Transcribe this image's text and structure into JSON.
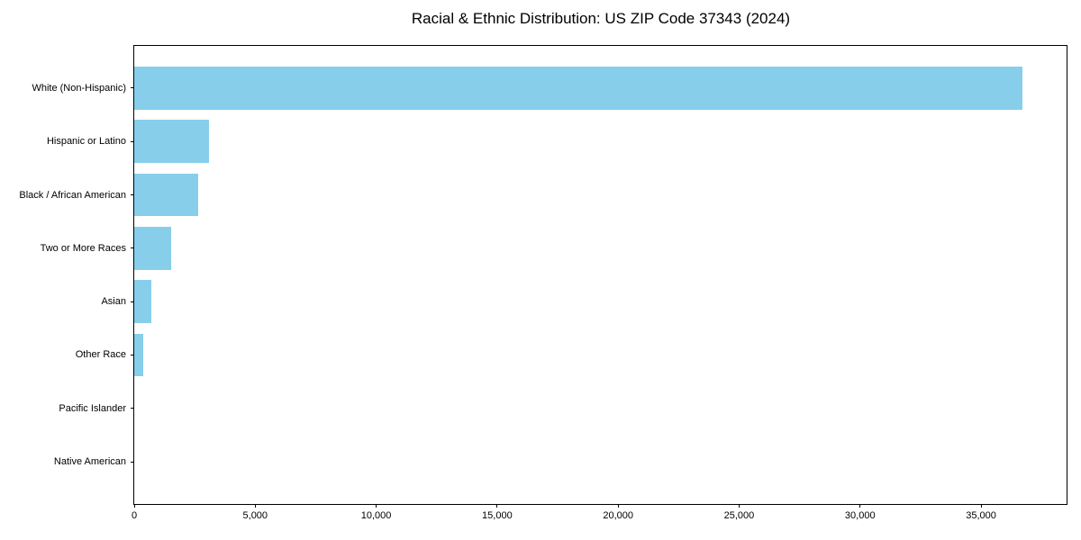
{
  "title": "Racial & Ethnic Distribution: US ZIP Code 37343 (2024)",
  "colors": {
    "bar": "#87CEEB",
    "axis": "#000000",
    "text": "#000000",
    "background": "#ffffff"
  },
  "chart_data": {
    "type": "bar",
    "orientation": "horizontal",
    "title": "Racial & Ethnic Distribution: US ZIP Code 37343 (2024)",
    "categories": [
      "White (Non-Hispanic)",
      "Hispanic or Latino",
      "Black / African American",
      "Two or More Races",
      "Asian",
      "Other Race",
      "Pacific Islander",
      "Native American"
    ],
    "values": [
      36700,
      3090,
      2630,
      1520,
      720,
      390,
      0,
      0
    ],
    "xlabel": "",
    "ylabel": "",
    "xlim": [
      0,
      38535
    ],
    "x_ticks": [
      0,
      5000,
      10000,
      15000,
      20000,
      25000,
      30000,
      35000
    ],
    "x_tick_labels": [
      "0",
      "5,000",
      "10,000",
      "15,000",
      "20,000",
      "25,000",
      "30,000",
      "35,000"
    ],
    "bar_color": "#87CEEB",
    "grid": false,
    "legend": "none",
    "bars_sorted": "descending-top-to-bottom"
  }
}
